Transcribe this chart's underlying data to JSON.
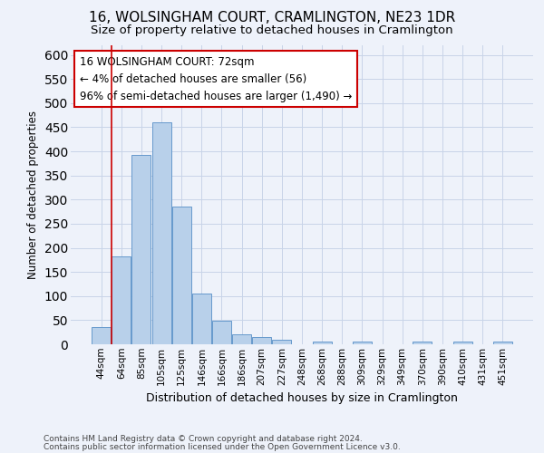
{
  "title": "16, WOLSINGHAM COURT, CRAMLINGTON, NE23 1DR",
  "subtitle": "Size of property relative to detached houses in Cramlington",
  "xlabel": "Distribution of detached houses by size in Cramlington",
  "ylabel": "Number of detached properties",
  "categories": [
    "44sqm",
    "64sqm",
    "85sqm",
    "105sqm",
    "125sqm",
    "146sqm",
    "166sqm",
    "186sqm",
    "207sqm",
    "227sqm",
    "248sqm",
    "268sqm",
    "288sqm",
    "309sqm",
    "329sqm",
    "349sqm",
    "370sqm",
    "390sqm",
    "410sqm",
    "431sqm",
    "451sqm"
  ],
  "values": [
    35,
    183,
    393,
    460,
    286,
    105,
    48,
    21,
    15,
    10,
    0,
    5,
    0,
    5,
    0,
    0,
    5,
    0,
    5,
    0,
    5
  ],
  "bar_color": "#b8d0ea",
  "bar_edge_color": "#6699cc",
  "annotation_text_lines": [
    "16 WOLSINGHAM COURT: 72sqm",
    "← 4% of detached houses are smaller (56)",
    "96% of semi-detached houses are larger (1,490) →"
  ],
  "annotation_box_color": "#ffffff",
  "annotation_box_edge_color": "#cc0000",
  "vline_color": "#cc0000",
  "grid_color": "#c8d4e8",
  "background_color": "#eef2fa",
  "ylim": [
    0,
    620
  ],
  "yticks": [
    0,
    50,
    100,
    150,
    200,
    250,
    300,
    350,
    400,
    450,
    500,
    550,
    600
  ],
  "footer_line1": "Contains HM Land Registry data © Crown copyright and database right 2024.",
  "footer_line2": "Contains public sector information licensed under the Open Government Licence v3.0.",
  "title_fontsize": 11,
  "subtitle_fontsize": 9.5,
  "xlabel_fontsize": 9,
  "ylabel_fontsize": 8.5,
  "tick_fontsize": 7.5,
  "annotation_fontsize": 8.5,
  "footer_fontsize": 6.5
}
